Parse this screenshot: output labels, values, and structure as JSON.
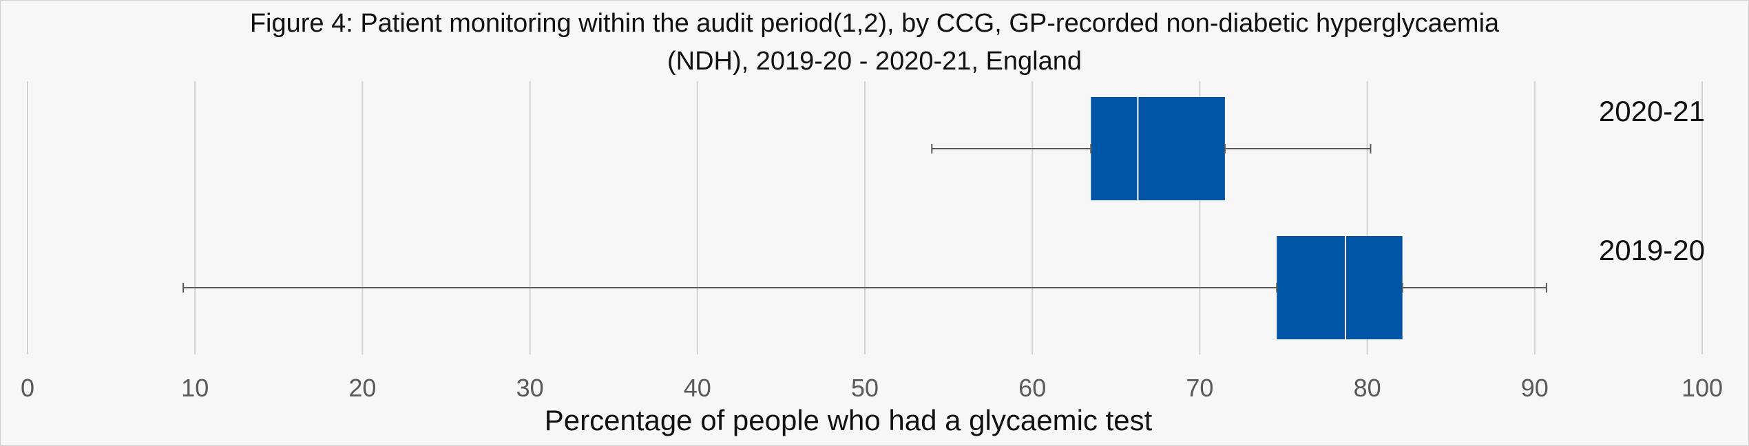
{
  "chart_data": {
    "type": "boxplot",
    "orientation": "horizontal",
    "title_lines": [
      "Figure 4: Patient monitoring within the audit period(1,2), by CCG, GP-recorded non-diabetic hyperglycaemia",
      "(NDH), 2019-20 - 2020-21, England"
    ],
    "xlabel": "Percentage of people who had a glycaemic test",
    "xlim": [
      0,
      100
    ],
    "xticks": [
      0,
      10,
      20,
      30,
      40,
      50,
      60,
      70,
      80,
      90,
      100
    ],
    "grid": true,
    "box_color": "#0055A6",
    "whisker_color": "#595959",
    "series": [
      {
        "category": "2020-21",
        "min": 54.0,
        "q1": 63.5,
        "median": 66.3,
        "q3": 71.5,
        "max": 80.2
      },
      {
        "category": "2019-20",
        "min": 9.3,
        "q1": 74.6,
        "median": 78.7,
        "q3": 82.1,
        "max": 90.7
      }
    ]
  }
}
